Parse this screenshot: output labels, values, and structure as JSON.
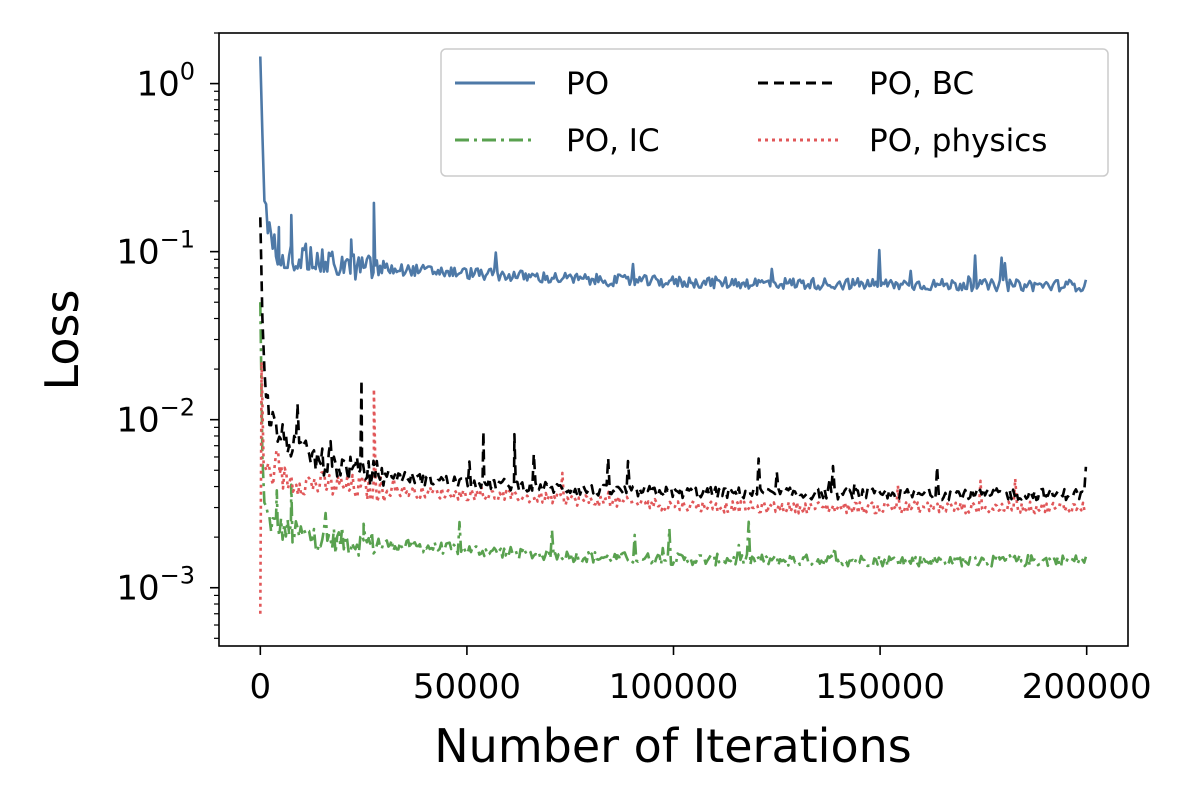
{
  "chart_data": {
    "type": "line",
    "title": "",
    "xlabel": "Number of Iterations",
    "ylabel": "Loss",
    "yscale": "log",
    "xlim": [
      -10000,
      210000
    ],
    "ylim": [
      0.00045,
      2.0
    ],
    "x_ticks": [
      0,
      50000,
      100000,
      150000,
      200000
    ],
    "x_tick_labels": [
      "0",
      "50000",
      "100000",
      "150000",
      "200000"
    ],
    "y_ticks": [
      0.001,
      0.01,
      0.1,
      1
    ],
    "y_tick_labels": [
      {
        "base": "10",
        "exp": "−3"
      },
      {
        "base": "10",
        "exp": "−2"
      },
      {
        "base": "10",
        "exp": "−1"
      },
      {
        "base": "10",
        "exp": "0"
      }
    ],
    "grid": false,
    "legend": {
      "location": "top-right",
      "columns": 2
    },
    "series": [
      {
        "name": "PO",
        "color": "#4e79a7",
        "style": "solid",
        "x": [
          0,
          500,
          1000,
          2000,
          4000,
          8000,
          15000,
          25000,
          40000,
          60000,
          80000,
          100000,
          120000,
          150000,
          180000,
          200000
        ],
        "values": [
          1.45,
          0.5,
          0.2,
          0.13,
          0.1,
          0.092,
          0.086,
          0.08,
          0.077,
          0.072,
          0.068,
          0.066,
          0.065,
          0.064,
          0.063,
          0.063
        ],
        "spikes": [
          {
            "x": 7500,
            "value": 0.165
          },
          {
            "x": 27500,
            "value": 0.195
          },
          {
            "x": 4500,
            "value": 0.14
          },
          {
            "x": 22000,
            "value": 0.118
          }
        ]
      },
      {
        "name": "PO, BC",
        "color": "#000000",
        "style": "dashed",
        "x": [
          0,
          500,
          1000,
          2000,
          4000,
          8000,
          15000,
          25000,
          40000,
          60000,
          80000,
          100000,
          120000,
          150000,
          180000,
          200000
        ],
        "values": [
          0.16,
          0.04,
          0.02,
          0.011,
          0.0085,
          0.0068,
          0.0056,
          0.0049,
          0.0044,
          0.0041,
          0.0038,
          0.0037,
          0.00365,
          0.0036,
          0.0036,
          0.0036
        ],
        "spikes": [
          {
            "x": 24500,
            "value": 0.0172
          },
          {
            "x": 9000,
            "value": 0.0125
          },
          {
            "x": 54000,
            "value": 0.0085
          },
          {
            "x": 61500,
            "value": 0.0082
          }
        ]
      },
      {
        "name": "PO, IC",
        "color": "#59a14f",
        "style": "dashdot",
        "x": [
          0,
          500,
          1000,
          2000,
          4000,
          8000,
          15000,
          25000,
          40000,
          60000,
          80000,
          100000,
          120000,
          150000,
          180000,
          200000
        ],
        "values": [
          0.05,
          0.006,
          0.0032,
          0.0025,
          0.0023,
          0.0021,
          0.00195,
          0.00185,
          0.00175,
          0.00162,
          0.00152,
          0.00148,
          0.00146,
          0.00145,
          0.00145,
          0.00145
        ],
        "spikes": [
          {
            "x": 7500,
            "value": 0.0041
          },
          {
            "x": 4000,
            "value": 0.0038
          },
          {
            "x": 25000,
            "value": 0.0024
          }
        ]
      },
      {
        "name": "PO, physics",
        "color": "#e15759",
        "style": "dotted",
        "x": [
          0,
          300,
          800,
          1500,
          4000,
          8000,
          15000,
          25000,
          40000,
          60000,
          80000,
          100000,
          120000,
          150000,
          180000,
          200000
        ],
        "values": [
          0.0007,
          0.022,
          0.0055,
          0.005,
          0.0046,
          0.0043,
          0.0041,
          0.0039,
          0.0037,
          0.0035,
          0.0033,
          0.0031,
          0.003,
          0.003,
          0.003,
          0.003
        ],
        "spikes": [
          {
            "x": 27500,
            "value": 0.0152
          }
        ]
      }
    ]
  }
}
